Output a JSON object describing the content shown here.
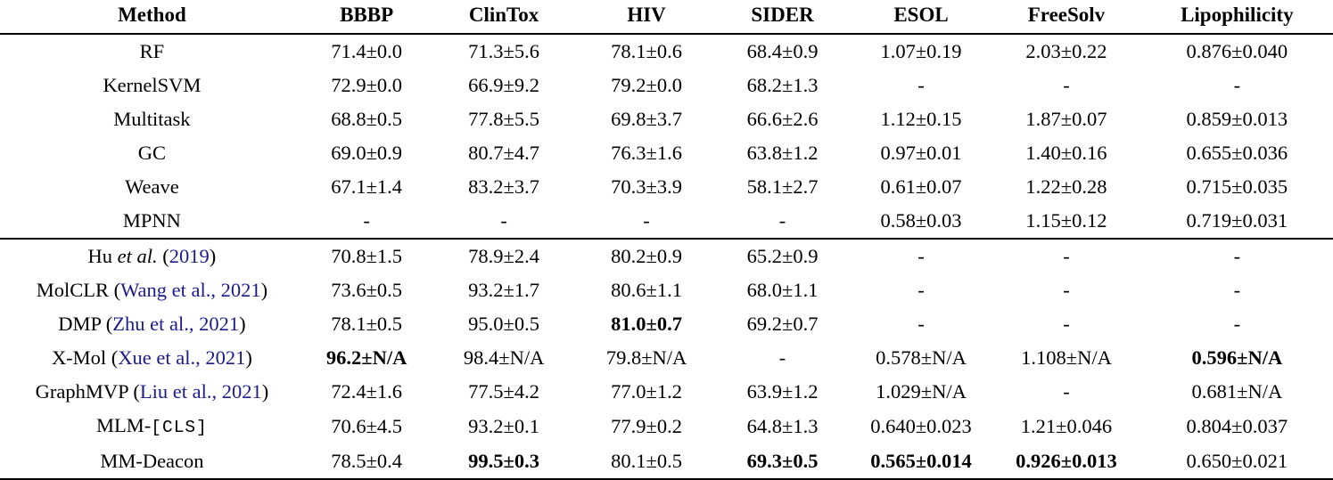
{
  "colors": {
    "citation_link": "#1b1b8c",
    "text": "#000000",
    "background": "#ffffff"
  },
  "table": {
    "columns": [
      "Method",
      "BBBP",
      "ClinTox",
      "HIV",
      "SIDER",
      "ESOL",
      "FreeSolv",
      "Lipophilicity"
    ],
    "sections": [
      {
        "name": "supervised-baselines",
        "rows": [
          {
            "method": [
              {
                "t": "RF"
              }
            ],
            "cells": [
              {
                "t": "71.4±0.0"
              },
              {
                "t": "71.3±5.6"
              },
              {
                "t": "78.1±0.6"
              },
              {
                "t": "68.4±0.9"
              },
              {
                "t": "1.07±0.19"
              },
              {
                "t": "2.03±0.22"
              },
              {
                "t": "0.876±0.040"
              }
            ]
          },
          {
            "method": [
              {
                "t": "KernelSVM"
              }
            ],
            "cells": [
              {
                "t": "72.9±0.0"
              },
              {
                "t": "66.9±9.2"
              },
              {
                "t": "79.2±0.0"
              },
              {
                "t": "68.2±1.3"
              },
              {
                "t": "-"
              },
              {
                "t": "-"
              },
              {
                "t": "-"
              }
            ]
          },
          {
            "method": [
              {
                "t": "Multitask"
              }
            ],
            "cells": [
              {
                "t": "68.8±0.5"
              },
              {
                "t": "77.8±5.5"
              },
              {
                "t": "69.8±3.7"
              },
              {
                "t": "66.6±2.6"
              },
              {
                "t": "1.12±0.15"
              },
              {
                "t": "1.87±0.07"
              },
              {
                "t": "0.859±0.013"
              }
            ]
          },
          {
            "method": [
              {
                "t": "GC"
              }
            ],
            "cells": [
              {
                "t": "69.0±0.9"
              },
              {
                "t": "80.7±4.7"
              },
              {
                "t": "76.3±1.6"
              },
              {
                "t": "63.8±1.2"
              },
              {
                "t": "0.97±0.01"
              },
              {
                "t": "1.40±0.16"
              },
              {
                "t": "0.655±0.036"
              }
            ]
          },
          {
            "method": [
              {
                "t": "Weave"
              }
            ],
            "cells": [
              {
                "t": "67.1±1.4"
              },
              {
                "t": "83.2±3.7"
              },
              {
                "t": "70.3±3.9"
              },
              {
                "t": "58.1±2.7"
              },
              {
                "t": "0.61±0.07"
              },
              {
                "t": "1.22±0.28"
              },
              {
                "t": "0.715±0.035"
              }
            ]
          },
          {
            "method": [
              {
                "t": "MPNN"
              }
            ],
            "cells": [
              {
                "t": "-"
              },
              {
                "t": "-"
              },
              {
                "t": "-"
              },
              {
                "t": "-"
              },
              {
                "t": "0.58±0.03"
              },
              {
                "t": "1.15±0.12"
              },
              {
                "t": "0.719±0.031"
              }
            ]
          }
        ]
      },
      {
        "name": "pretrained-methods",
        "rows": [
          {
            "method": [
              {
                "t": "Hu "
              },
              {
                "t": "et al.",
                "s": "i"
              },
              {
                "t": " ("
              },
              {
                "t": "2019",
                "s": "l"
              },
              {
                "t": ")"
              }
            ],
            "cells": [
              {
                "t": "70.8±1.5"
              },
              {
                "t": "78.9±2.4"
              },
              {
                "t": "80.2±0.9"
              },
              {
                "t": "65.2±0.9"
              },
              {
                "t": "-"
              },
              {
                "t": "-"
              },
              {
                "t": "-"
              }
            ]
          },
          {
            "method": [
              {
                "t": "MolCLR ("
              },
              {
                "t": "Wang et al., 2021",
                "s": "l"
              },
              {
                "t": ")"
              }
            ],
            "cells": [
              {
                "t": "73.6±0.5"
              },
              {
                "t": "93.2±1.7"
              },
              {
                "t": "80.6±1.1"
              },
              {
                "t": "68.0±1.1"
              },
              {
                "t": "-"
              },
              {
                "t": "-"
              },
              {
                "t": "-"
              }
            ]
          },
          {
            "method": [
              {
                "t": "DMP ("
              },
              {
                "t": "Zhu et al., 2021",
                "s": "l"
              },
              {
                "t": ")"
              }
            ],
            "cells": [
              {
                "t": "78.1±0.5"
              },
              {
                "t": "95.0±0.5"
              },
              {
                "t": "81.0±0.7",
                "b": true
              },
              {
                "t": "69.2±0.7"
              },
              {
                "t": "-"
              },
              {
                "t": "-"
              },
              {
                "t": "-"
              }
            ]
          },
          {
            "method": [
              {
                "t": "X-Mol ("
              },
              {
                "t": "Xue et al., 2021",
                "s": "l"
              },
              {
                "t": ")"
              }
            ],
            "cells": [
              {
                "t": "96.2±N/A",
                "b": true
              },
              {
                "t": "98.4±N/A"
              },
              {
                "t": "79.8±N/A"
              },
              {
                "t": "-"
              },
              {
                "t": "0.578±N/A"
              },
              {
                "t": "1.108±N/A"
              },
              {
                "t": "0.596±N/A",
                "b": true
              }
            ]
          },
          {
            "method": [
              {
                "t": "GraphMVP ("
              },
              {
                "t": "Liu et al., 2021",
                "s": "l"
              },
              {
                "t": ")"
              }
            ],
            "cells": [
              {
                "t": "72.4±1.6"
              },
              {
                "t": "77.5±4.2"
              },
              {
                "t": "77.0±1.2"
              },
              {
                "t": "63.9±1.2"
              },
              {
                "t": "1.029±N/A"
              },
              {
                "t": "-"
              },
              {
                "t": "0.681±N/A"
              }
            ]
          },
          {
            "method": [
              {
                "t": "MLM-"
              },
              {
                "t": "[CLS]",
                "s": "m"
              }
            ],
            "cells": [
              {
                "t": "70.6±4.5"
              },
              {
                "t": "93.2±0.1"
              },
              {
                "t": "77.9±0.2"
              },
              {
                "t": "64.8±1.3"
              },
              {
                "t": "0.640±0.023"
              },
              {
                "t": "1.21±0.046"
              },
              {
                "t": "0.804±0.037"
              }
            ]
          },
          {
            "method": [
              {
                "t": "MM-Deacon"
              }
            ],
            "cells": [
              {
                "t": "78.5±0.4"
              },
              {
                "t": "99.5±0.3",
                "b": true
              },
              {
                "t": "80.1±0.5"
              },
              {
                "t": "69.3±0.5",
                "b": true
              },
              {
                "t": "0.565±0.014",
                "b": true
              },
              {
                "t": "0.926±0.013",
                "b": true
              },
              {
                "t": "0.650±0.021"
              }
            ]
          }
        ]
      }
    ]
  }
}
